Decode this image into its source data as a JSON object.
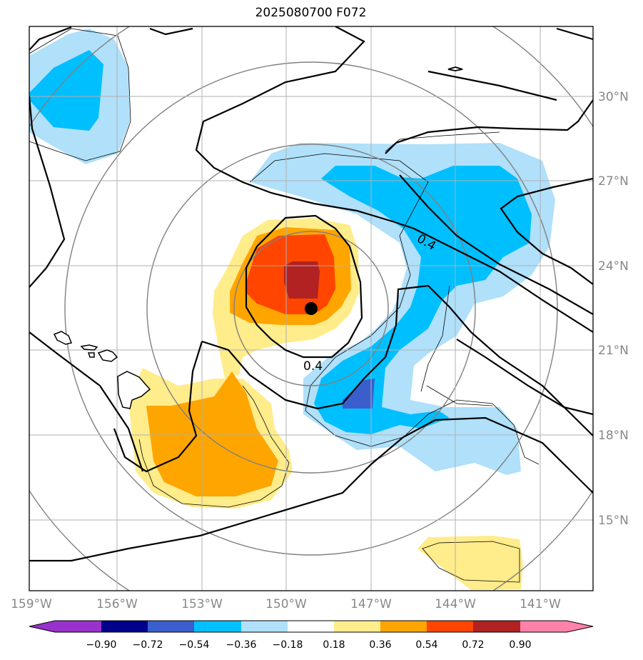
{
  "title": "2025080700 F072",
  "map": {
    "lon_labels": [
      "159°W",
      "156°W",
      "153°W",
      "150°W",
      "147°W",
      "144°W",
      "141°W"
    ],
    "lat_labels": [
      "30°N",
      "27°N",
      "24°N",
      "21°N",
      "18°N",
      "15°N"
    ],
    "contour_labels": [
      "0.4",
      "0.4"
    ],
    "storm_marker": "storm-center"
  },
  "colorbar": {
    "tick_labels": [
      "−0.90",
      "−0.72",
      "−0.54",
      "−0.36",
      "−0.18",
      "0.18",
      "0.36",
      "0.54",
      "0.72",
      "0.90"
    ],
    "colors": [
      "#9932cc",
      "#00008b",
      "#3a5fcd",
      "#00bfff",
      "#b0e0fa",
      "#ffffff",
      "#ffec8b",
      "#ffa500",
      "#ff4500",
      "#b22222",
      "#ff82ab"
    ]
  }
}
